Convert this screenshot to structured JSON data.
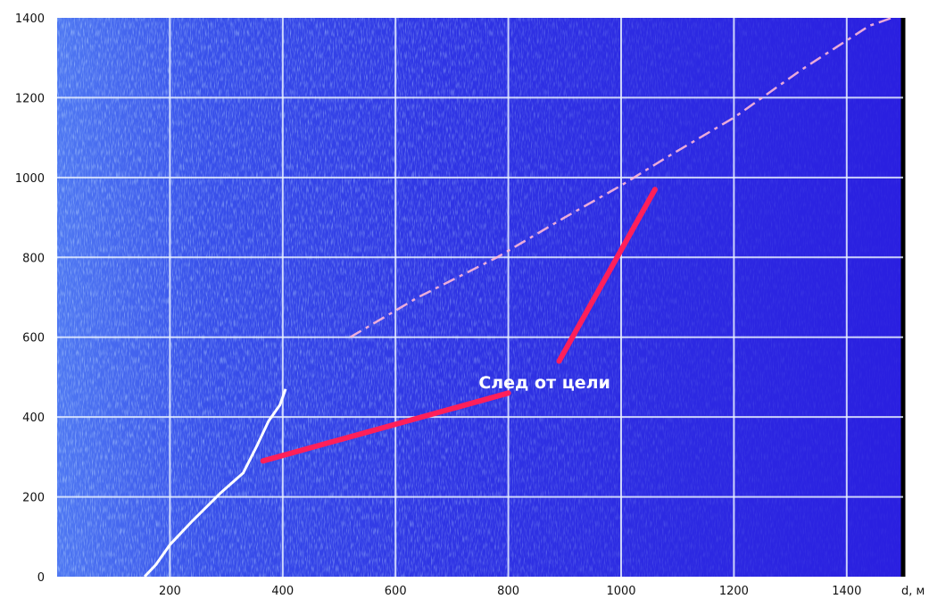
{
  "chart_data": {
    "type": "heatmap",
    "title": "",
    "xlabel": "d, м",
    "ylabel": "",
    "xlim": [
      0,
      1500
    ],
    "ylim": [
      0,
      1400
    ],
    "x_ticks": [
      200,
      400,
      600,
      800,
      1000,
      1200,
      1400
    ],
    "y_ticks": [
      0,
      200,
      400,
      600,
      800,
      1000,
      1200,
      1400
    ],
    "grid": true,
    "colors": {
      "background": "#2a1fe0",
      "noise_left": "#6fa8ff",
      "gridline": "#e8f0ff",
      "track": "#ffffff",
      "pointer": "#ff1f5a",
      "faint_track": "#ffb8d8"
    },
    "tracks": [
      {
        "kind": "bright",
        "points": [
          [
            155,
            0
          ],
          [
            175,
            30
          ],
          [
            200,
            80
          ],
          [
            240,
            140
          ],
          [
            290,
            210
          ],
          [
            330,
            260
          ],
          [
            355,
            330
          ],
          [
            375,
            390
          ],
          [
            395,
            430
          ],
          [
            405,
            470
          ]
        ]
      },
      {
        "kind": "faint",
        "points": [
          [
            520,
            600
          ],
          [
            640,
            700
          ],
          [
            780,
            800
          ],
          [
            900,
            900
          ],
          [
            1000,
            980
          ],
          [
            1080,
            1050
          ],
          [
            1200,
            1150
          ],
          [
            1320,
            1270
          ],
          [
            1440,
            1380
          ],
          [
            1480,
            1400
          ]
        ]
      }
    ],
    "annotation": {
      "text": "След от цели",
      "anchor": [
        760,
        490
      ],
      "pointers": [
        {
          "from": [
            365,
            290
          ],
          "to": [
            800,
            460
          ]
        },
        {
          "from": [
            890,
            540
          ],
          "to": [
            1060,
            970
          ]
        }
      ]
    }
  }
}
